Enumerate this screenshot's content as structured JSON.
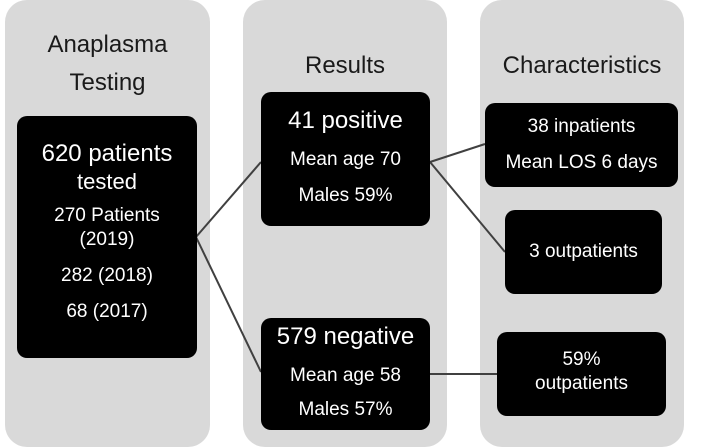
{
  "columns": {
    "testing": {
      "title_line1": "Anaplasma",
      "title_line2": "Testing"
    },
    "results": {
      "title": "Results"
    },
    "characteristics": {
      "title": "Characteristics"
    }
  },
  "tested_box": {
    "line1": "620 patients",
    "line2": "tested",
    "line3": "270  Patients",
    "line4": "(2019)",
    "line5": "282 (2018)",
    "line6": "68 (2017)"
  },
  "positive_box": {
    "headline": "41 positive",
    "age": "Mean age 70",
    "sex": "Males 59%"
  },
  "negative_box": {
    "headline": "579 negative",
    "age": "Mean age 58",
    "sex": "Males 57%"
  },
  "inpatients_box": {
    "line1": "38 inpatients",
    "line2": "Mean LOS 6 days"
  },
  "outpatients_pos_box": {
    "line1": "3 outpatients"
  },
  "outpatients_neg_box": {
    "line1": "59%",
    "line2": "outpatients"
  },
  "colors": {
    "column_bg": "#d9d9d9",
    "box_bg": "#000000",
    "box_text": "#ffffff",
    "connector": "#404040"
  }
}
